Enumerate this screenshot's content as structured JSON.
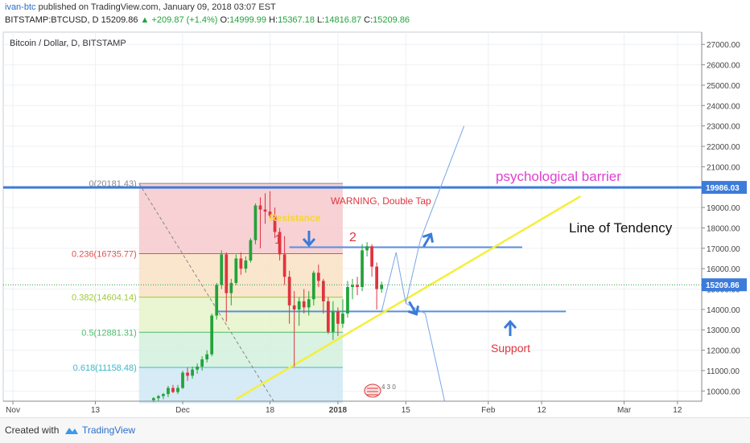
{
  "header": {
    "author": "ivan-btc",
    "published_text": " published on TradingView.com, January 09, 2018 03:07 EST",
    "symbol": "BITSTAMP:BTCUSD, D",
    "last": "15209.86",
    "change": "▲ +209.87 (+1.4%)",
    "open_label": "O:",
    "open": "14999.99",
    "high_label": "H:",
    "high": "15367.18",
    "low_label": "L:",
    "low": "14816.87",
    "close_label": "C:",
    "close": "15209.86"
  },
  "footer": {
    "created_with": "Created with",
    "brand": "TradingView"
  },
  "colors": {
    "up": "#22a33a",
    "down": "#e03340",
    "blue_line": "#3c7bd9",
    "tendency": "#f4ef3a",
    "annotation_red": "#e0353f",
    "barrier_text": "#e040d0",
    "price_tag": "#3c7bd9"
  },
  "chart_data": {
    "type": "candlestick",
    "title": "Bitcoin / Dollar, D, BITSTAMP",
    "price_axis": {
      "ticks": [
        10000,
        11000,
        12000,
        13000,
        14000,
        15000,
        16000,
        17000,
        18000,
        19000,
        20000,
        21000,
        22000,
        23000,
        24000,
        25000,
        26000,
        27000
      ],
      "tick_labels": [
        "10000.00",
        "11000.00",
        "12000.00",
        "13000.00",
        "14000.00",
        "15000.00",
        "16000.00",
        "17000.00",
        "18000.00",
        "19000.00",
        "20000.00",
        "21000.00",
        "22000.00",
        "23000.00",
        "24000.00",
        "25000.00",
        "26000.00",
        "27000.00"
      ],
      "range": [
        9500,
        27600
      ]
    },
    "time_axis": {
      "ticks": [
        {
          "day": -36,
          "label": "Nov"
        },
        {
          "day": -19,
          "label": "13"
        },
        {
          "day": -1,
          "label": "Dec"
        },
        {
          "day": 17,
          "label": "18"
        },
        {
          "day": 31,
          "label": "2018"
        },
        {
          "day": 45,
          "label": "15"
        },
        {
          "day": 62,
          "label": "Feb"
        },
        {
          "day": 73,
          "label": "12"
        },
        {
          "day": 90,
          "label": "Mar"
        },
        {
          "day": 101,
          "label": "12"
        }
      ],
      "range": [
        -38,
        106
      ]
    },
    "candles": [
      {
        "d": -7,
        "o": 9550,
        "h": 9700,
        "l": 9450,
        "c": 9650
      },
      {
        "d": -6,
        "o": 9650,
        "h": 9800,
        "l": 9500,
        "c": 9750
      },
      {
        "d": -5,
        "o": 9750,
        "h": 9900,
        "l": 9600,
        "c": 9850
      },
      {
        "d": -4,
        "o": 9850,
        "h": 10250,
        "l": 9700,
        "c": 10150
      },
      {
        "d": -3,
        "o": 10150,
        "h": 10300,
        "l": 9900,
        "c": 9950
      },
      {
        "d": -2,
        "o": 9950,
        "h": 10300,
        "l": 9850,
        "c": 10150
      },
      {
        "d": -1,
        "o": 10150,
        "h": 11000,
        "l": 10100,
        "c": 10900
      },
      {
        "d": 0,
        "o": 10900,
        "h": 11150,
        "l": 10500,
        "c": 10750
      },
      {
        "d": 1,
        "o": 10750,
        "h": 11200,
        "l": 10600,
        "c": 11050
      },
      {
        "d": 2,
        "o": 11050,
        "h": 11350,
        "l": 10850,
        "c": 11200
      },
      {
        "d": 3,
        "o": 11200,
        "h": 11700,
        "l": 11000,
        "c": 11550
      },
      {
        "d": 4,
        "o": 11550,
        "h": 12000,
        "l": 11400,
        "c": 11800
      },
      {
        "d": 5,
        "o": 11800,
        "h": 13800,
        "l": 11700,
        "c": 13700
      },
      {
        "d": 6,
        "o": 13700,
        "h": 15300,
        "l": 13500,
        "c": 15200
      },
      {
        "d": 7,
        "o": 15200,
        "h": 16900,
        "l": 15000,
        "c": 16700
      },
      {
        "d": 8,
        "o": 16700,
        "h": 16800,
        "l": 13400,
        "c": 14800
      },
      {
        "d": 9,
        "o": 14800,
        "h": 15500,
        "l": 14200,
        "c": 15300
      },
      {
        "d": 10,
        "o": 15300,
        "h": 16700,
        "l": 15200,
        "c": 16500
      },
      {
        "d": 11,
        "o": 16500,
        "h": 16800,
        "l": 15700,
        "c": 16000
      },
      {
        "d": 12,
        "o": 16000,
        "h": 16600,
        "l": 15800,
        "c": 16400
      },
      {
        "d": 13,
        "o": 16400,
        "h": 17500,
        "l": 16300,
        "c": 17400
      },
      {
        "d": 14,
        "o": 17400,
        "h": 19200,
        "l": 17200,
        "c": 19100
      },
      {
        "d": 15,
        "o": 19100,
        "h": 19500,
        "l": 17000,
        "c": 18900
      },
      {
        "d": 16,
        "o": 18900,
        "h": 19700,
        "l": 18200,
        "c": 18800
      },
      {
        "d": 17,
        "o": 18800,
        "h": 19800,
        "l": 18500,
        "c": 18600
      },
      {
        "d": 18,
        "o": 18600,
        "h": 19000,
        "l": 17500,
        "c": 17800
      },
      {
        "d": 19,
        "o": 17800,
        "h": 18000,
        "l": 16400,
        "c": 16700
      },
      {
        "d": 20,
        "o": 16700,
        "h": 17600,
        "l": 15200,
        "c": 15600
      },
      {
        "d": 21,
        "o": 15600,
        "h": 15900,
        "l": 13300,
        "c": 14200
      },
      {
        "d": 22,
        "o": 14200,
        "h": 14900,
        "l": 11200,
        "c": 14000
      },
      {
        "d": 23,
        "o": 14000,
        "h": 14600,
        "l": 13200,
        "c": 14400
      },
      {
        "d": 24,
        "o": 14400,
        "h": 15000,
        "l": 13800,
        "c": 14100
      },
      {
        "d": 25,
        "o": 14100,
        "h": 14900,
        "l": 13700,
        "c": 14500
      },
      {
        "d": 26,
        "o": 14500,
        "h": 15900,
        "l": 14200,
        "c": 15800
      },
      {
        "d": 27,
        "o": 15800,
        "h": 16200,
        "l": 15100,
        "c": 15400
      },
      {
        "d": 28,
        "o": 15400,
        "h": 15500,
        "l": 13800,
        "c": 14400
      },
      {
        "d": 29,
        "o": 14400,
        "h": 14600,
        "l": 12800,
        "c": 12900
      },
      {
        "d": 30,
        "o": 12900,
        "h": 14400,
        "l": 12500,
        "c": 13900
      },
      {
        "d": 31,
        "o": 13900,
        "h": 14100,
        "l": 12700,
        "c": 13300
      },
      {
        "d": 32,
        "o": 13300,
        "h": 14500,
        "l": 13100,
        "c": 13800
      },
      {
        "d": 33,
        "o": 13800,
        "h": 15400,
        "l": 13600,
        "c": 15100
      },
      {
        "d": 34,
        "o": 15100,
        "h": 15500,
        "l": 14500,
        "c": 15200
      },
      {
        "d": 35,
        "o": 15200,
        "h": 15600,
        "l": 14700,
        "c": 15100
      },
      {
        "d": 36,
        "o": 15100,
        "h": 17200,
        "l": 14900,
        "c": 16900
      },
      {
        "d": 37,
        "o": 16900,
        "h": 17300,
        "l": 16600,
        "c": 17100
      },
      {
        "d": 38,
        "o": 17100,
        "h": 17200,
        "l": 15600,
        "c": 16100
      },
      {
        "d": 39,
        "o": 16100,
        "h": 16300,
        "l": 14000,
        "c": 15000
      },
      {
        "d": 40,
        "o": 15000,
        "h": 15367,
        "l": 14817,
        "c": 15210
      }
    ],
    "fibonacci": {
      "levels": [
        {
          "ratio": "0",
          "price": 20181.43,
          "label": "0(20181.43)"
        },
        {
          "ratio": "0.236",
          "price": 16735.77,
          "label": "0.236(16735.77)"
        },
        {
          "ratio": "0.382",
          "price": 14604.14,
          "label": "0.382(14604.14)"
        },
        {
          "ratio": "0.5",
          "price": 12881.31,
          "label": "0.5(12881.31)"
        },
        {
          "ratio": "0.618",
          "price": 11158.48,
          "label": "0.618(11158.48)"
        }
      ],
      "bottom": 9400,
      "day_start": -10,
      "day_end": 32
    },
    "barrier_line": {
      "price": 19986.03,
      "label": "19986.03"
    },
    "last_price_tag": {
      "price": 15209.86,
      "label": "15209.86"
    },
    "annotations": {
      "barrier_text": "psychological barrier",
      "tendency_text": "Line of Tendency",
      "warning_text": "WARNING, Double Tap",
      "resistance_text": "Resistance",
      "support_text": "Support",
      "peak1": "1",
      "peak2": "2",
      "badge_number": "4 3 0"
    },
    "resistance_line": {
      "price": 17050,
      "day_start": 21,
      "day_end": 69
    },
    "support_line": {
      "price": 13900,
      "day_start": 6,
      "day_end": 78
    },
    "tendency_line": {
      "from": {
        "day": 10,
        "price": 9600
      },
      "to": {
        "day": 81,
        "price": 19550
      }
    }
  }
}
